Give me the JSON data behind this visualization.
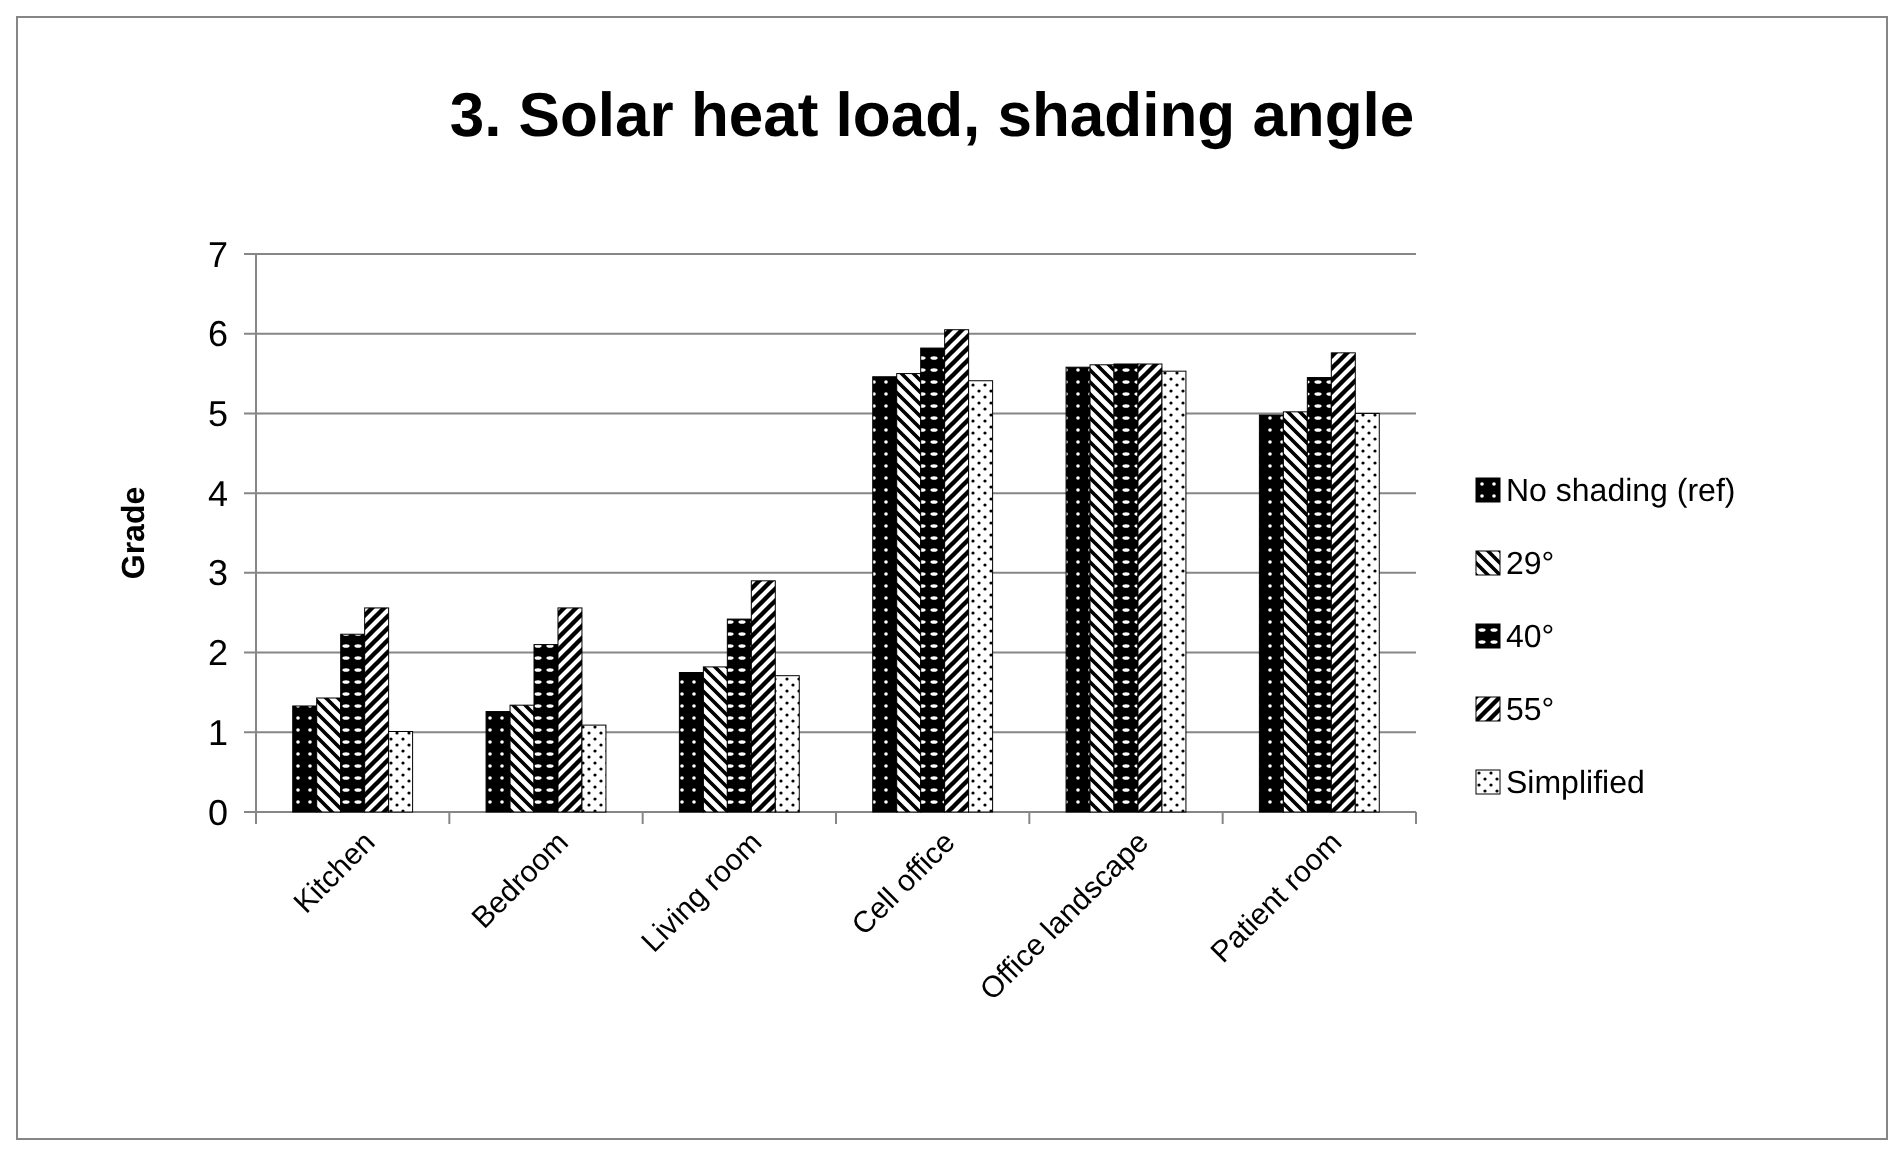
{
  "chart_data": {
    "type": "bar",
    "title": "3. Solar heat load, shading angle",
    "ylabel": "Grade",
    "categories": [
      "Kitchen",
      "Bedroom",
      "Living room",
      "Cell office",
      "Office landscape",
      "Patient room"
    ],
    "series": [
      {
        "name": "No shading (ref)",
        "color": "#000000",
        "values": [
          1.33,
          1.26,
          1.75,
          5.46,
          5.58,
          4.98
        ]
      },
      {
        "name": "29°",
        "color": "#000000",
        "values": [
          1.43,
          1.34,
          1.82,
          5.5,
          5.61,
          5.02
        ]
      },
      {
        "name": "40°",
        "color": "#000000",
        "values": [
          2.23,
          2.1,
          2.42,
          5.82,
          5.62,
          5.45
        ]
      },
      {
        "name": "55°",
        "color": "#000000",
        "values": [
          2.56,
          2.56,
          2.9,
          6.05,
          5.62,
          5.76
        ]
      },
      {
        "name": "Simplified",
        "color": "#000000",
        "values": [
          1.01,
          1.09,
          1.71,
          5.41,
          5.53,
          5.0
        ]
      }
    ],
    "ylim": [
      0,
      7
    ],
    "yticks": [
      0,
      1,
      2,
      3,
      4,
      5,
      6,
      7
    ],
    "grid": "y",
    "legend": "right"
  }
}
